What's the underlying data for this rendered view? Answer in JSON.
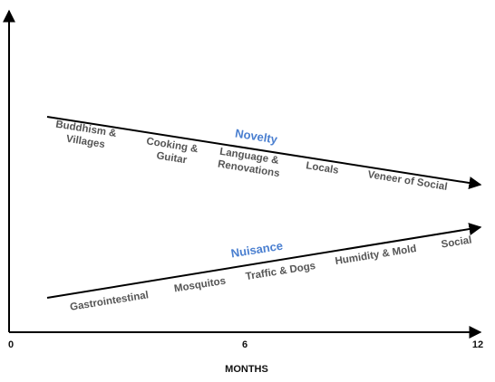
{
  "chart_data": {
    "type": "line",
    "xlabel": "MONTHS",
    "ylabel": "",
    "x_ticks": [
      "0",
      "6",
      "12"
    ],
    "xlim": [
      0,
      12
    ],
    "grid": false,
    "series": [
      {
        "name": "Novelty",
        "color": "#4a7fd0",
        "trend": "decreasing",
        "items": [
          "Buddhism & Villages",
          "Cooking & Guitar",
          "Language & Renovations",
          "Locals",
          "Veneer of Social"
        ]
      },
      {
        "name": "Nuisance",
        "color": "#4a7fd0",
        "trend": "increasing",
        "items": [
          "Gastrointestinal",
          "Mosquitos",
          "Traffic & Dogs",
          "Humidity & Mold",
          "Social"
        ]
      }
    ]
  }
}
